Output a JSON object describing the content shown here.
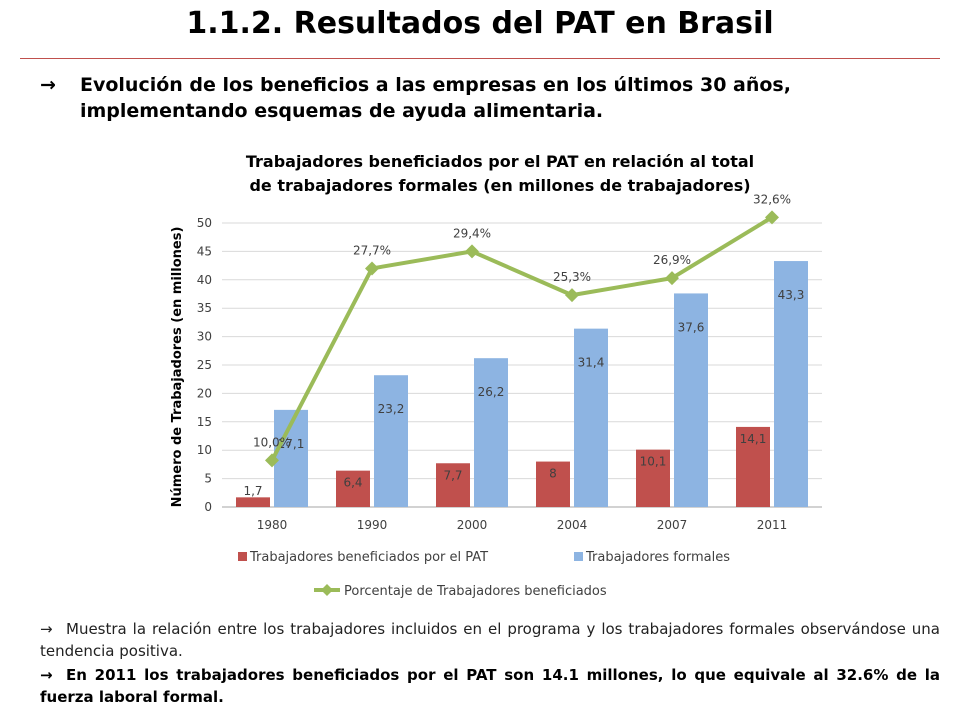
{
  "slide": {
    "title": "1.1.2. Resultados del PAT en Brasil",
    "intro_arrow": "→",
    "intro_line1": "Evolución de los beneficios a las empresas en los últimos 30 años,",
    "intro_line2": "implementando esquemas de ayuda alimentaria.",
    "bullet_arrow": "→",
    "bullet1": "Muestra la relación entre los trabajadores incluidos en el programa y los trabajadores formales observándose una tendencia positiva.",
    "bullet2": "En 2011 los trabajadores beneficiados por el PAT son 14.1 millones, lo que equivale al 32.6% de la fuerza laboral formal."
  },
  "chart_data": {
    "type": "bar",
    "title_line1": "Trabajadores beneficiados por el PAT en relación al total",
    "title_line2": "de trabajadores formales (en millones de trabajadores)",
    "ylabel": "Número de Trabajadores (en millones)",
    "categories": [
      "1980",
      "1990",
      "2000",
      "2004",
      "2007",
      "2011"
    ],
    "ylim": [
      0,
      50
    ],
    "yticks": [
      0,
      5,
      10,
      15,
      20,
      25,
      30,
      35,
      40,
      45,
      50
    ],
    "grid": true,
    "legend_position": "bottom",
    "series": [
      {
        "name": "Trabajadores beneficiados por el PAT",
        "type": "bar",
        "color": "#c0504d",
        "values": [
          1.7,
          6.4,
          7.7,
          8,
          10.1,
          14.1
        ],
        "labels": [
          "1,7",
          "6,4",
          "7,7",
          "8",
          "10,1",
          "14,1"
        ]
      },
      {
        "name": "Trabajadores formales",
        "type": "bar",
        "color": "#8db4e2",
        "values": [
          17.1,
          23.2,
          26.2,
          31.4,
          37.6,
          43.3
        ],
        "labels": [
          "17,1",
          "23,2",
          "26,2",
          "31,4",
          "37,6",
          "43,3"
        ]
      },
      {
        "name": "Porcentaje de Trabajadores beneficiados",
        "type": "line",
        "color": "#9bbb59",
        "values": [
          10.0,
          27.7,
          29.4,
          25.3,
          26.9,
          32.6
        ],
        "labels": [
          "10,0%",
          "27,7%",
          "29,4%",
          "25,3%",
          "26,9%",
          "32,6%"
        ],
        "plotted_on_axis_values": [
          8.2,
          42.0,
          45.0,
          37.3,
          40.3,
          51.0
        ]
      }
    ]
  }
}
